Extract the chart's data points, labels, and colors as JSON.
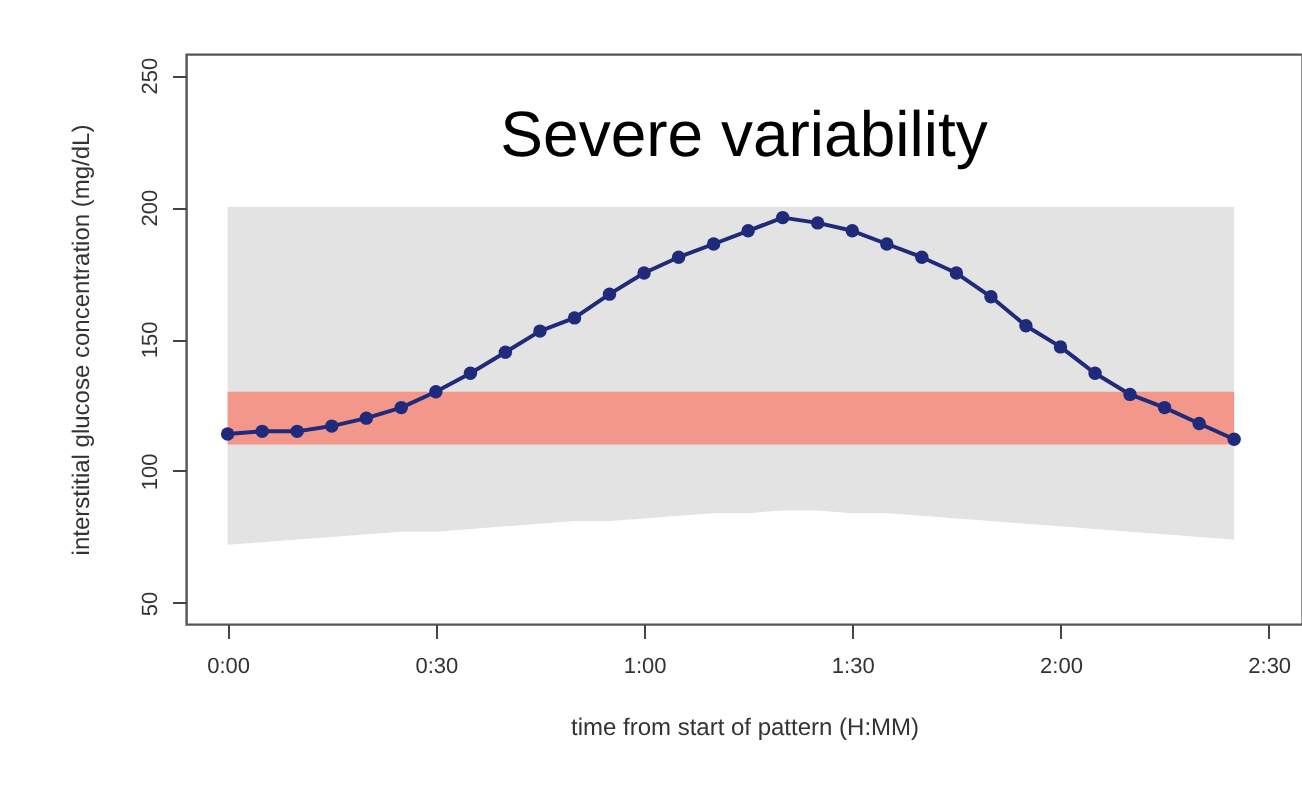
{
  "chart_data": {
    "type": "line",
    "title": "Severe variability",
    "xlabel": "time from start of pattern (H:MM)",
    "ylabel": "interstitial glucose concentration (mg/dL)",
    "x": [
      0,
      0.083,
      0.167,
      0.25,
      0.333,
      0.417,
      0.5,
      0.583,
      0.667,
      0.75,
      0.833,
      0.917,
      1,
      1.083,
      1.167,
      1.25,
      1.333,
      1.417,
      1.5,
      1.583,
      1.667,
      1.75,
      1.833,
      1.917,
      2,
      2.083,
      2.167,
      2.25,
      2.333,
      2.417
    ],
    "series": [
      {
        "color": "#1f2a7a",
        "values": [
          114,
          115,
          115,
          117,
          120,
          124,
          130,
          137,
          145,
          153,
          158,
          167,
          175,
          181,
          186,
          191,
          196,
          194,
          191,
          186,
          181,
          175,
          166,
          155,
          147,
          137,
          129,
          124,
          118,
          112
        ],
        "lower": [
          72,
          73,
          74,
          75,
          76,
          77,
          77,
          78,
          79,
          80,
          81,
          81,
          82,
          83,
          84,
          84,
          85,
          85,
          84,
          84,
          83,
          82,
          81,
          80,
          79,
          78,
          77,
          76,
          75,
          74
        ],
        "upper": [
          200,
          200,
          200,
          200,
          200,
          200,
          200,
          200,
          200,
          200,
          200,
          200,
          200,
          200,
          200,
          200,
          200,
          200,
          200,
          200,
          200,
          200,
          200,
          200,
          200,
          200,
          200,
          200,
          200,
          200
        ]
      }
    ],
    "bands": [
      {
        "axis": "y",
        "from": 110,
        "to": 130,
        "color": "#fa7d6d"
      }
    ],
    "xlim": [
      -0.1,
      2.58
    ],
    "xticks": [
      {
        "value": 0,
        "label": "0:00"
      },
      {
        "value": 0.5,
        "label": "0:30"
      },
      {
        "value": 1,
        "label": "1:00"
      },
      {
        "value": 1.5,
        "label": "1:30"
      },
      {
        "value": 2,
        "label": "2:00"
      },
      {
        "value": 2.5,
        "label": "2:30"
      }
    ],
    "ylim": [
      42,
      258
    ],
    "yticks": [
      50,
      100,
      150,
      200,
      250
    ],
    "grid": false,
    "marker": "circle",
    "line_style": "solid"
  }
}
